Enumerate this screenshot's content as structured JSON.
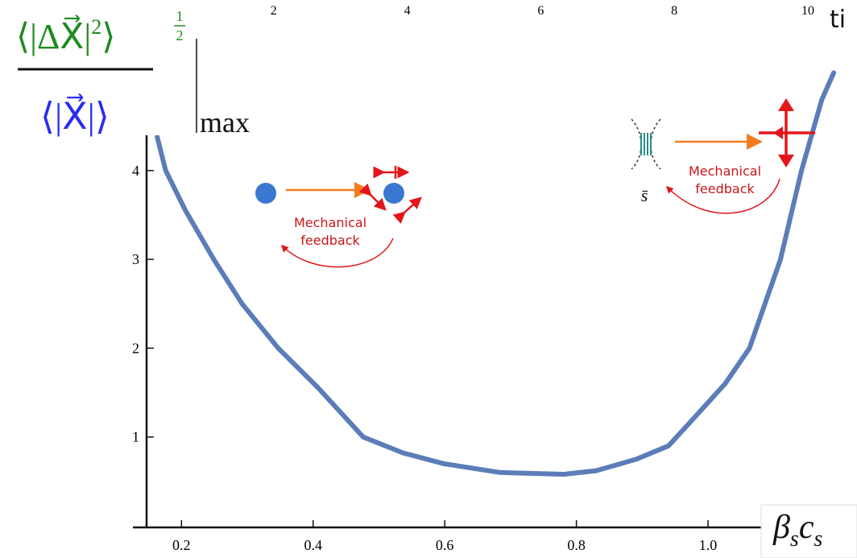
{
  "chart_data": {
    "type": "line",
    "x": [
      0.163,
      0.176,
      0.206,
      0.249,
      0.292,
      0.347,
      0.408,
      0.476,
      0.537,
      0.598,
      0.684,
      0.781,
      0.83,
      0.891,
      0.94,
      0.977,
      1.026,
      1.063,
      1.11,
      1.142,
      1.173,
      1.191
    ],
    "values": [
      4.38,
      4.0,
      3.55,
      3.0,
      2.5,
      2.0,
      1.55,
      1.0,
      0.82,
      0.7,
      0.6,
      0.58,
      0.62,
      0.75,
      0.9,
      1.2,
      1.6,
      2.0,
      3.0,
      4.0,
      4.8,
      5.1
    ],
    "color": "#5b7db8",
    "xlim": [
      0.147,
      1.2
    ],
    "xticks": [
      0.2,
      0.4,
      0.6,
      0.8,
      {
        "value": 1.0,
        "label": "1.0"
      }
    ],
    "ylim": [
      0,
      5.92
    ],
    "yticks": [
      1,
      2,
      3,
      4
    ],
    "x2lim": [
      0,
      10.6
    ],
    "x2ticks": [
      2,
      4,
      6,
      8,
      10
    ],
    "x2label": "ti",
    "xlabel": {
      "base": [
        "β",
        "c"
      ],
      "sub": [
        "s",
        "s"
      ]
    },
    "ylabel": {
      "numerator": "⟨|ΔX⃗|",
      "numerator_power": "2",
      "numerator_close": "⟩",
      "exponent_top": "1",
      "exponent_bottom": "2",
      "denominator": "⟨|X⃗|⟩",
      "subscript": "max"
    },
    "annotations": [
      {
        "lines": [
          "Mechanical",
          "feedback"
        ]
      },
      {
        "lines": [
          "Mechanical",
          "feedback"
        ]
      },
      {
        "text": "s̄"
      }
    ]
  }
}
